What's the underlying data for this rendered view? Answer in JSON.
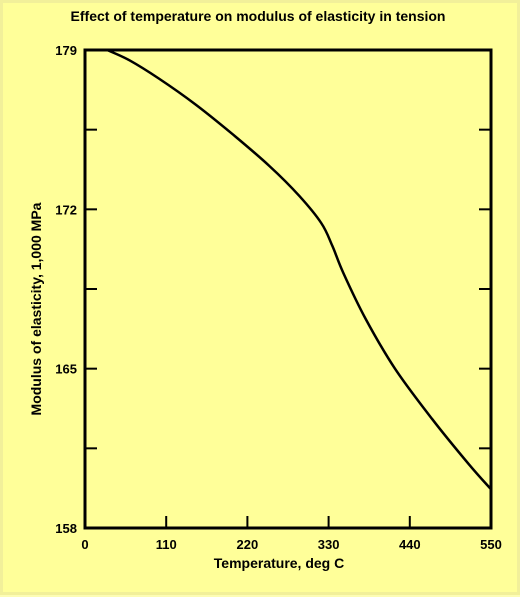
{
  "chart_data": {
    "type": "line",
    "title": "Effect of temperature on modulus of elasticity in tension",
    "xlabel": "Temperature, deg C",
    "ylabel": "Modulus of elasticity, 1,000 MPa",
    "xlim": [
      0,
      550
    ],
    "ylim": [
      158,
      179
    ],
    "x_ticks": [
      0,
      110,
      220,
      330,
      440,
      550
    ],
    "x_tick_labels": [
      "0",
      "110",
      "220",
      "330",
      "440",
      "550"
    ],
    "y_ticks": [
      158,
      161.5,
      165,
      168.5,
      172,
      175.5,
      179
    ],
    "y_tick_labels": [
      "158",
      "",
      "165",
      "",
      "172",
      "",
      "179"
    ],
    "grid": false,
    "series": [
      {
        "color": "#000000",
        "x": [
          30,
          60,
          100,
          150,
          200,
          250,
          290,
          320,
          335,
          350,
          380,
          420,
          470,
          520,
          550
        ],
        "y": [
          179,
          178.55,
          177.75,
          176.6,
          175.3,
          173.9,
          172.6,
          171.4,
          170.4,
          169.2,
          167.2,
          165.0,
          162.8,
          160.8,
          159.7
        ]
      }
    ]
  },
  "colors": {
    "background": "#ffff99",
    "line": "#000000"
  }
}
